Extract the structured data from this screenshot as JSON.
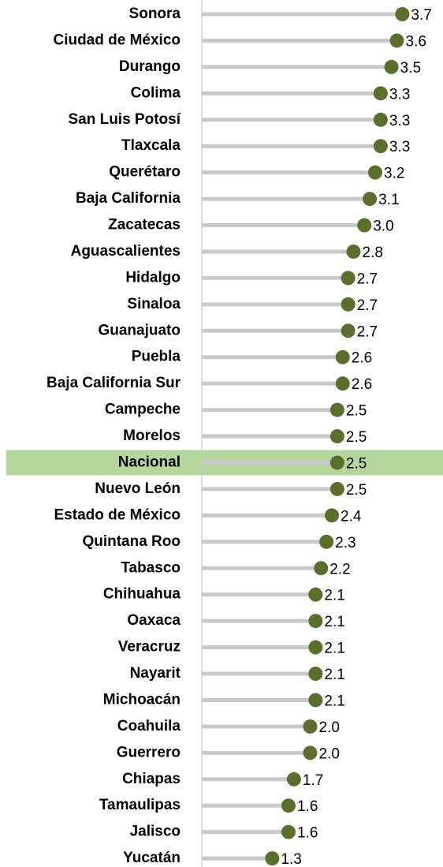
{
  "chart_data": {
    "type": "lollipop",
    "categories": [
      "Sonora",
      "Ciudad de México",
      "Durango",
      "Colima",
      "San Luis Potosí",
      "Tlaxcala",
      "Querétaro",
      "Baja California",
      "Zacatecas",
      "Aguascalientes",
      "Hidalgo",
      "Sinaloa",
      "Guanajuato",
      "Puebla",
      "Baja California Sur",
      "Campeche",
      "Morelos",
      "Nacional",
      "Nuevo León",
      "Estado de México",
      "Quintana Roo",
      "Tabasco",
      "Chihuahua",
      "Oaxaca",
      "Veracruz",
      "Nayarit",
      "Michoacán",
      "Coahuila",
      "Guerrero",
      "Chiapas",
      "Tamaulipas",
      "Jalisco",
      "Yucatán"
    ],
    "values": [
      3.7,
      3.6,
      3.5,
      3.3,
      3.3,
      3.3,
      3.2,
      3.1,
      3.0,
      2.8,
      2.7,
      2.7,
      2.7,
      2.6,
      2.6,
      2.5,
      2.5,
      2.5,
      2.5,
      2.4,
      2.3,
      2.2,
      2.1,
      2.1,
      2.1,
      2.1,
      2.1,
      2.0,
      2.0,
      1.7,
      1.6,
      1.6,
      1.3
    ],
    "value_labels": [
      "3.7",
      "3.6",
      "3.5",
      "3.3",
      "3.3",
      "3.3",
      "3.2",
      "3.1",
      "3.0",
      "2.8",
      "2.7",
      "2.7",
      "2.7",
      "2.6",
      "2.6",
      "2.5",
      "2.5",
      "2.5",
      "2.5",
      "2.4",
      "2.3",
      "2.2",
      "2.1",
      "2.1",
      "2.1",
      "2.1",
      "2.1",
      "2.0",
      "2.0",
      "1.7",
      "1.6",
      "1.6",
      "1.3"
    ],
    "color": "#5b6f2d",
    "stem_color": "#c9c9c9",
    "xlim": [
      0,
      4.4
    ],
    "highlight": "Nacional",
    "highlight_color": "#b4d69c"
  }
}
